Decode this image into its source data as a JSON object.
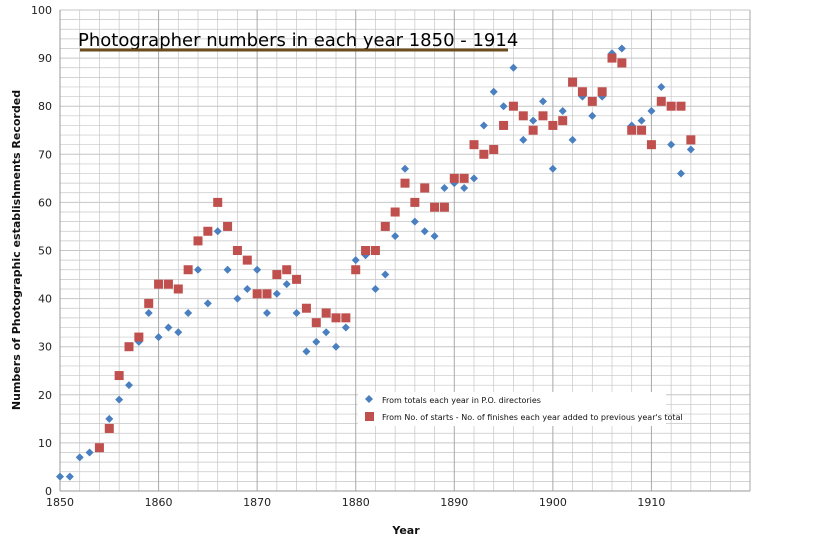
{
  "chart_data": {
    "type": "scatter",
    "title": "Photographer numbers in each year 1850 - 1914",
    "xlabel": "Year",
    "ylabel": "Numbers of Photographic establishments Recorded",
    "xlim": [
      1850,
      1920
    ],
    "ylim": [
      0,
      100
    ],
    "x_ticks": [
      1850,
      1860,
      1870,
      1880,
      1890,
      1900,
      1910
    ],
    "y_ticks": [
      0,
      10,
      20,
      30,
      40,
      50,
      60,
      70,
      80,
      90,
      100
    ],
    "grid": true,
    "legend_position": "lower-right inside plot",
    "title_underline_color": "#6b4d1e",
    "grid_color": "#c6c6c6",
    "axis_color": "#9a9a9a",
    "series": [
      {
        "name": "From totals each year in P.O. directories",
        "marker": "diamond",
        "color": "#4a7fc0",
        "points": [
          [
            1850,
            3
          ],
          [
            1851,
            3
          ],
          [
            1852,
            7
          ],
          [
            1853,
            8
          ],
          [
            1855,
            15
          ],
          [
            1856,
            19
          ],
          [
            1857,
            22
          ],
          [
            1858,
            31
          ],
          [
            1859,
            37
          ],
          [
            1860,
            32
          ],
          [
            1861,
            34
          ],
          [
            1862,
            33
          ],
          [
            1863,
            37
          ],
          [
            1864,
            46
          ],
          [
            1865,
            39
          ],
          [
            1866,
            54
          ],
          [
            1867,
            46
          ],
          [
            1868,
            40
          ],
          [
            1869,
            42
          ],
          [
            1870,
            46
          ],
          [
            1871,
            37
          ],
          [
            1872,
            41
          ],
          [
            1873,
            43
          ],
          [
            1874,
            37
          ],
          [
            1875,
            29
          ],
          [
            1876,
            31
          ],
          [
            1877,
            33
          ],
          [
            1878,
            30
          ],
          [
            1879,
            34
          ],
          [
            1880,
            48
          ],
          [
            1881,
            49
          ],
          [
            1882,
            42
          ],
          [
            1883,
            45
          ],
          [
            1884,
            53
          ],
          [
            1885,
            67
          ],
          [
            1886,
            56
          ],
          [
            1887,
            54
          ],
          [
            1888,
            53
          ],
          [
            1889,
            63
          ],
          [
            1890,
            64
          ],
          [
            1891,
            63
          ],
          [
            1892,
            65
          ],
          [
            1893,
            76
          ],
          [
            1894,
            83
          ],
          [
            1895,
            80
          ],
          [
            1896,
            88
          ],
          [
            1897,
            73
          ],
          [
            1898,
            77
          ],
          [
            1899,
            81
          ],
          [
            1900,
            67
          ],
          [
            1901,
            79
          ],
          [
            1902,
            73
          ],
          [
            1903,
            82
          ],
          [
            1904,
            78
          ],
          [
            1905,
            82
          ],
          [
            1906,
            91
          ],
          [
            1907,
            92
          ],
          [
            1908,
            76
          ],
          [
            1909,
            77
          ],
          [
            1910,
            79
          ],
          [
            1911,
            84
          ],
          [
            1912,
            72
          ],
          [
            1913,
            66
          ],
          [
            1914,
            71
          ]
        ]
      },
      {
        "name": "From No. of starts - No. of finishes each year added to previous year's total",
        "marker": "square",
        "color": "#c0504d",
        "points": [
          [
            1854,
            9
          ],
          [
            1855,
            13
          ],
          [
            1856,
            24
          ],
          [
            1857,
            30
          ],
          [
            1858,
            32
          ],
          [
            1859,
            39
          ],
          [
            1860,
            43
          ],
          [
            1861,
            43
          ],
          [
            1862,
            42
          ],
          [
            1863,
            46
          ],
          [
            1864,
            52
          ],
          [
            1865,
            54
          ],
          [
            1866,
            60
          ],
          [
            1867,
            55
          ],
          [
            1868,
            50
          ],
          [
            1869,
            48
          ],
          [
            1870,
            41
          ],
          [
            1871,
            41
          ],
          [
            1872,
            45
          ],
          [
            1873,
            46
          ],
          [
            1874,
            44
          ],
          [
            1875,
            38
          ],
          [
            1876,
            35
          ],
          [
            1877,
            37
          ],
          [
            1878,
            36
          ],
          [
            1879,
            36
          ],
          [
            1880,
            46
          ],
          [
            1881,
            50
          ],
          [
            1882,
            50
          ],
          [
            1883,
            55
          ],
          [
            1884,
            58
          ],
          [
            1885,
            64
          ],
          [
            1886,
            60
          ],
          [
            1887,
            63
          ],
          [
            1888,
            59
          ],
          [
            1889,
            59
          ],
          [
            1890,
            65
          ],
          [
            1891,
            65
          ],
          [
            1892,
            72
          ],
          [
            1893,
            70
          ],
          [
            1894,
            71
          ],
          [
            1895,
            76
          ],
          [
            1896,
            80
          ],
          [
            1897,
            78
          ],
          [
            1898,
            75
          ],
          [
            1899,
            78
          ],
          [
            1900,
            76
          ],
          [
            1901,
            77
          ],
          [
            1902,
            85
          ],
          [
            1903,
            83
          ],
          [
            1904,
            81
          ],
          [
            1905,
            83
          ],
          [
            1906,
            90
          ],
          [
            1907,
            89
          ],
          [
            1908,
            75
          ],
          [
            1909,
            75
          ],
          [
            1910,
            72
          ],
          [
            1911,
            81
          ],
          [
            1912,
            80
          ],
          [
            1913,
            80
          ],
          [
            1914,
            73
          ]
        ]
      }
    ]
  }
}
